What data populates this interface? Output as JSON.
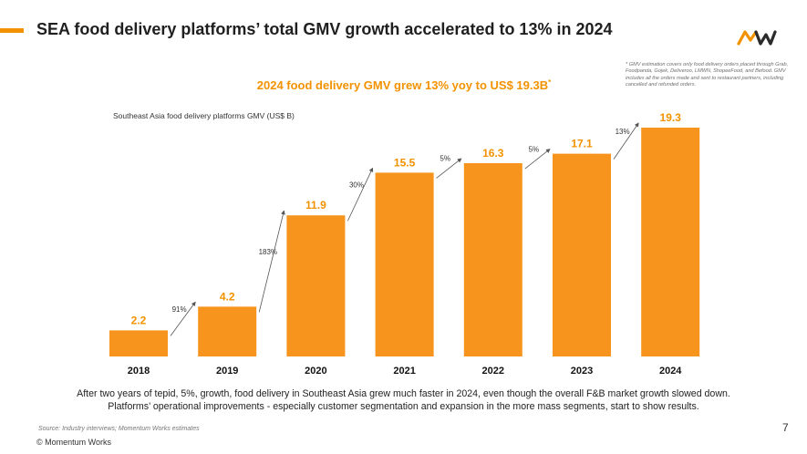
{
  "slide": {
    "title": "SEA food delivery platforms’ total GMV growth accelerated to 13% in 2024",
    "logo_text": "MW",
    "footnote": "* GMV estimation covers only food delivery orders placed through Grab, Foodpanda, Gojek, Deliveroo, LMWN, ShopeeFood, and Befood. GMV includes all the orders made and sent to restaurant partners, including cancelled and refunded orders.",
    "insight_line1": "After two years of tepid, 5%, growth, food delivery in Southeast Asia grew much faster in 2024, even though the overall F&B market growth slowed down.",
    "insight_line2": "Platforms’ operational improvements - especially customer segmentation and expansion in the more mass segments, start to show results.",
    "source": "Source: Industry interviews; Momentum Works estimates",
    "copyright": "© Momentum Works",
    "page_number": "7"
  },
  "chart_data": {
    "type": "bar",
    "title": "2024 food delivery GMV grew 13% yoy to US$ 19.3B",
    "title_marker": "*",
    "ylabel": "Southeast Asia food delivery platforms GMV (US$ B)",
    "xlabel": "",
    "categories": [
      "2018",
      "2019",
      "2020",
      "2021",
      "2022",
      "2023",
      "2024"
    ],
    "values": [
      2.2,
      4.2,
      11.9,
      15.5,
      16.3,
      17.1,
      19.3
    ],
    "value_labels": [
      "2.2",
      "4.2",
      "11.9",
      "15.5",
      "16.3",
      "17.1",
      "19.3"
    ],
    "growth_labels": [
      "91%",
      "183%",
      "30%",
      "5%",
      "5%",
      "13%"
    ],
    "ylim": [
      0,
      19.3
    ],
    "grid": false,
    "legend": "none",
    "colors": {
      "bar": "#f7941d",
      "label": "#f39200",
      "arrow": "#555555",
      "accent": "#f39200"
    }
  }
}
